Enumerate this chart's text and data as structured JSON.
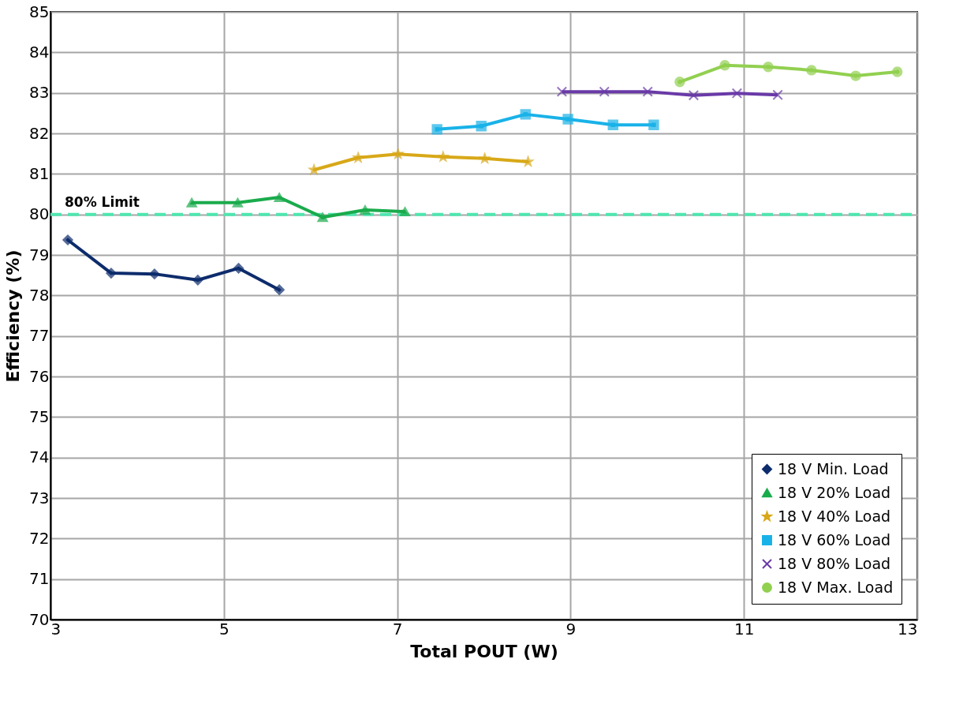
{
  "chart_data": {
    "type": "line",
    "xlabel": "Total POUT (W)",
    "ylabel": "Efficiency (%)",
    "xlim": [
      3,
      13
    ],
    "xticks": [
      3,
      5,
      7,
      9,
      11,
      13
    ],
    "ylim": [
      70,
      85
    ],
    "yticks": [
      70,
      71,
      72,
      73,
      74,
      75,
      76,
      77,
      78,
      79,
      80,
      81,
      82,
      83,
      84,
      85
    ],
    "grid": true,
    "legend": "bottom right",
    "line_style": "solid",
    "series": [
      {
        "name": "18 V Min. Load",
        "color": "#0d2c6c",
        "marker": "diamond",
        "x": [
          3.2,
          3.7,
          4.2,
          4.7,
          5.17,
          5.64
        ],
        "values": [
          79.37,
          78.55,
          78.53,
          78.38,
          78.67,
          78.14
        ]
      },
      {
        "name": "18 V 20% Load",
        "color": "#1aab4c",
        "marker": "triangle",
        "x": [
          4.63,
          5.16,
          5.64,
          6.14,
          6.63,
          7.09
        ],
        "values": [
          80.29,
          80.29,
          80.42,
          79.93,
          80.11,
          80.07
        ]
      },
      {
        "name": "18 V 40% Load",
        "color": "#d8a818",
        "marker": "star",
        "x": [
          6.04,
          6.55,
          7.01,
          7.53,
          8.01,
          8.51
        ],
        "values": [
          81.1,
          81.4,
          81.49,
          81.42,
          81.38,
          81.3
        ]
      },
      {
        "name": "18 V 60% Load",
        "color": "#19b2e8",
        "marker": "square",
        "x": [
          7.46,
          7.97,
          8.48,
          8.97,
          9.49,
          9.96
        ],
        "values": [
          82.1,
          82.18,
          82.47,
          82.35,
          82.21,
          82.21
        ]
      },
      {
        "name": "18 V 80% Load",
        "color": "#6a3aa8",
        "marker": "cross",
        "x": [
          8.9,
          9.39,
          9.89,
          10.42,
          10.92,
          11.39
        ],
        "values": [
          83.03,
          83.03,
          83.03,
          82.94,
          82.99,
          82.95
        ]
      },
      {
        "name": "18 V Max. Load",
        "color": "#92d050",
        "marker": "circle",
        "x": [
          10.26,
          10.78,
          11.28,
          11.78,
          12.29,
          12.77
        ],
        "values": [
          83.27,
          83.68,
          83.64,
          83.56,
          83.42,
          83.52
        ]
      }
    ],
    "ref_lines": [
      {
        "axis": "y",
        "value": 80,
        "label": "80% Limit",
        "color": "#4fe6b0",
        "line_style": "dashed"
      }
    ]
  }
}
